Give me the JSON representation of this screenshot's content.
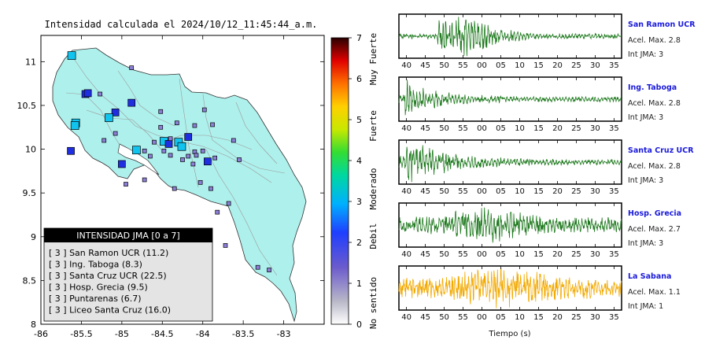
{
  "map": {
    "title": "Intensidad calculada el 2024/10/12_11:45:44_a.m.",
    "x_ticks": [
      "-86",
      "-85.5",
      "-85",
      "-84.5",
      "-84",
      "-83.5",
      "-83"
    ],
    "y_ticks": [
      "11",
      "10.5",
      "10",
      "9.5",
      "9",
      "8.5",
      "8"
    ],
    "colorbar": {
      "ticks": [
        "7",
        "6",
        "5",
        "4",
        "3",
        "2",
        "1",
        "0"
      ],
      "labels": [
        "Muy Fuerte",
        "Fuerte",
        "Moderado",
        "Debil",
        "No sentido"
      ]
    },
    "legend": {
      "title": "INTENSIDAD JMA [0 a 7]",
      "items": [
        "[ 3 ]  San Ramon UCR (11.2)",
        "[ 3 ]  Ing. Taboga (8.3)",
        "[ 3 ]  Santa Cruz UCR (22.5)",
        "[ 3 ]  Hosp. Grecia (9.5)",
        "[ 3 ]  Puntarenas (6.7)",
        "[ 3 ]  Liceo Santa Cruz (16.0)"
      ]
    }
  },
  "waveforms": {
    "x_ticks": [
      "40",
      "45",
      "50",
      "55",
      "00",
      "05",
      "10",
      "15",
      "20",
      "25",
      "30",
      "35"
    ],
    "xlabel": "Tiempo (s)",
    "stations": [
      {
        "name": "San Ramon UCR",
        "accel": "Acel. Max. 2.8",
        "jma": "Int JMA: 3",
        "color": "#1f7a1f"
      },
      {
        "name": "Ing. Taboga",
        "accel": "Acel. Max. 2.8",
        "jma": "Int JMA: 3",
        "color": "#1f7a1f"
      },
      {
        "name": "Santa Cruz UCR",
        "accel": "Acel. Max. 2.8",
        "jma": "Int JMA: 3",
        "color": "#1f7a1f"
      },
      {
        "name": "Hosp. Grecia",
        "accel": "Acel. Max. 2.7",
        "jma": "Int JMA: 3",
        "color": "#1f7a1f"
      },
      {
        "name": "La Sabana",
        "accel": "Acel. Max. 1.1",
        "jma": "Int JMA: 1",
        "color": "#f2a900"
      }
    ]
  },
  "chart_data": {
    "type": "scatter",
    "title": "Intensidad calculada el 2024/10/12_11:45:44_a.m.",
    "xlabel": "",
    "ylabel": "",
    "xlim": [
      -86,
      -82.5
    ],
    "ylim": [
      8,
      11.3
    ],
    "points": [
      {
        "lon": -85.62,
        "lat": 11.07,
        "jma": 3
      },
      {
        "lon": -85.45,
        "lat": 10.63,
        "jma": 2
      },
      {
        "lon": -85.42,
        "lat": 10.64,
        "jma": 2
      },
      {
        "lon": -85.08,
        "lat": 10.42,
        "jma": 2
      },
      {
        "lon": -84.88,
        "lat": 10.53,
        "jma": 2
      },
      {
        "lon": -85.57,
        "lat": 10.3,
        "jma": 3
      },
      {
        "lon": -85.58,
        "lat": 10.27,
        "jma": 3
      },
      {
        "lon": -85.16,
        "lat": 10.36,
        "jma": 3
      },
      {
        "lon": -85.63,
        "lat": 9.98,
        "jma": 2
      },
      {
        "lon": -84.82,
        "lat": 9.99,
        "jma": 3
      },
      {
        "lon": -85.0,
        "lat": 9.83,
        "jma": 2
      },
      {
        "lon": -84.48,
        "lat": 10.09,
        "jma": 3
      },
      {
        "lon": -84.42,
        "lat": 10.06,
        "jma": 2
      },
      {
        "lon": -84.3,
        "lat": 10.08,
        "jma": 3
      },
      {
        "lon": -84.26,
        "lat": 10.03,
        "jma": 3
      },
      {
        "lon": -84.18,
        "lat": 10.14,
        "jma": 2
      },
      {
        "lon": -84.1,
        "lat": 9.97,
        "jma": 1
      },
      {
        "lon": -84.08,
        "lat": 9.93,
        "jma": 1
      },
      {
        "lon": -83.94,
        "lat": 9.86,
        "jma": 2
      },
      {
        "lon": -84.4,
        "lat": 10.12,
        "jma": 1
      },
      {
        "lon": -84.52,
        "lat": 10.25,
        "jma": 1
      },
      {
        "lon": -84.6,
        "lat": 10.08,
        "jma": 1
      },
      {
        "lon": -84.72,
        "lat": 9.98,
        "jma": 1
      },
      {
        "lon": -84.65,
        "lat": 9.92,
        "jma": 1
      },
      {
        "lon": -84.4,
        "lat": 9.93,
        "jma": 1
      },
      {
        "lon": -84.25,
        "lat": 9.88,
        "jma": 1
      },
      {
        "lon": -84.18,
        "lat": 9.92,
        "jma": 1
      },
      {
        "lon": -84.0,
        "lat": 9.98,
        "jma": 1
      },
      {
        "lon": -83.85,
        "lat": 9.9,
        "jma": 1
      },
      {
        "lon": -83.62,
        "lat": 10.1,
        "jma": 1
      },
      {
        "lon": -83.55,
        "lat": 9.88,
        "jma": 1
      },
      {
        "lon": -83.98,
        "lat": 10.45,
        "jma": 1
      },
      {
        "lon": -84.1,
        "lat": 10.27,
        "jma": 1
      },
      {
        "lon": -83.88,
        "lat": 10.28,
        "jma": 1
      },
      {
        "lon": -84.32,
        "lat": 10.3,
        "jma": 1
      },
      {
        "lon": -84.52,
        "lat": 10.43,
        "jma": 1
      },
      {
        "lon": -84.88,
        "lat": 10.93,
        "jma": 1
      },
      {
        "lon": -85.27,
        "lat": 10.63,
        "jma": 1
      },
      {
        "lon": -85.22,
        "lat": 10.1,
        "jma": 1
      },
      {
        "lon": -85.08,
        "lat": 10.18,
        "jma": 1
      },
      {
        "lon": -84.95,
        "lat": 9.6,
        "jma": 1
      },
      {
        "lon": -84.72,
        "lat": 9.65,
        "jma": 1
      },
      {
        "lon": -84.35,
        "lat": 9.55,
        "jma": 1
      },
      {
        "lon": -84.03,
        "lat": 9.62,
        "jma": 1
      },
      {
        "lon": -83.9,
        "lat": 9.55,
        "jma": 1
      },
      {
        "lon": -83.68,
        "lat": 9.38,
        "jma": 1
      },
      {
        "lon": -83.82,
        "lat": 9.28,
        "jma": 1
      },
      {
        "lon": -83.72,
        "lat": 8.9,
        "jma": 1
      },
      {
        "lon": -83.32,
        "lat": 8.65,
        "jma": 1
      },
      {
        "lon": -83.18,
        "lat": 8.62,
        "jma": 1
      },
      {
        "lon": -84.48,
        "lat": 9.98,
        "jma": 1
      },
      {
        "lon": -84.12,
        "lat": 9.83,
        "jma": 1
      }
    ]
  }
}
